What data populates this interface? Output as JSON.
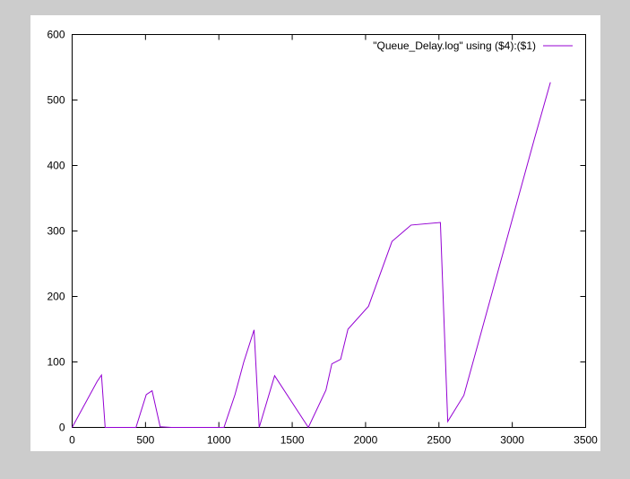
{
  "chart_data": {
    "type": "line",
    "title": "",
    "xlabel": "",
    "ylabel": "",
    "xlim": [
      0,
      3500
    ],
    "ylim": [
      0,
      600
    ],
    "x_ticks": [
      0,
      500,
      1000,
      1500,
      2000,
      2500,
      3000,
      3500
    ],
    "y_ticks": [
      0,
      100,
      200,
      300,
      400,
      500,
      600
    ],
    "grid": false,
    "legend_position": "top-right",
    "series": [
      {
        "name": "\"Queue_Delay.log\" using ($4):($1)",
        "color": "#9400d3",
        "x": [
          0,
          170,
          200,
          225,
          435,
          505,
          545,
          600,
          675,
          1035,
          1110,
          1170,
          1240,
          1275,
          1380,
          1610,
          1730,
          1770,
          1830,
          1880,
          2020,
          2180,
          2310,
          2510,
          2560,
          2670,
          3150,
          3260
        ],
        "y": [
          0,
          70,
          80,
          0,
          0,
          50,
          56,
          1,
          0,
          0,
          50,
          100,
          149,
          0,
          79,
          0,
          57,
          97,
          104,
          150,
          185,
          284,
          309,
          313,
          9,
          49,
          440,
          527
        ]
      }
    ]
  }
}
